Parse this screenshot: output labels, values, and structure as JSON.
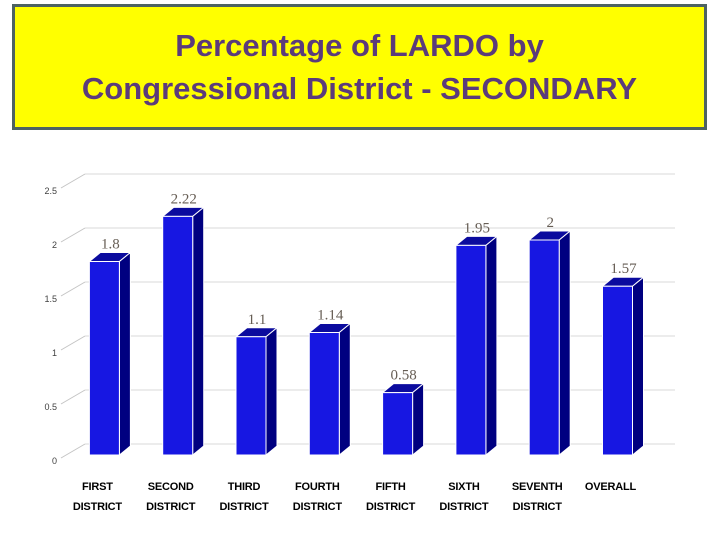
{
  "slide": {
    "title_line1": "Percentage of LARDO by",
    "title_line2": "Congressional District - SECONDARY"
  },
  "title_style": {
    "background": "#ffff00",
    "border": "#4d6262",
    "text": "#5b3b7b"
  },
  "chart_data": {
    "type": "bar",
    "variant": "3d-column",
    "title": "Percentage of LARDO by Congressional District - SECONDARY",
    "categories": [
      "FIRST DISTRICT",
      "SECOND DISTRICT",
      "THIRD DISTRICT",
      "FOURTH DISTRICT",
      "FIFTH DISTRICT",
      "SIXTH DISTRICT",
      "SEVENTH DISTRICT",
      "OVERALL"
    ],
    "category_lines": [
      [
        "FIRST",
        "DISTRICT"
      ],
      [
        "SECOND",
        "DISTRICT"
      ],
      [
        "THIRD",
        "DISTRICT"
      ],
      [
        "FOURTH",
        "DISTRICT"
      ],
      [
        "FIFTH",
        "DISTRICT"
      ],
      [
        "SIXTH",
        "DISTRICT"
      ],
      [
        "SEVENTH",
        "DISTRICT"
      ],
      [
        "OVERALL"
      ]
    ],
    "values": [
      1.8,
      2.22,
      1.1,
      1.14,
      0.58,
      1.95,
      2,
      1.57
    ],
    "data_labels": [
      "1.8",
      "2.22",
      "1.1",
      "1.14",
      "0.58",
      "1.95",
      "2",
      "1.57"
    ],
    "xlabel": "",
    "ylabel": "",
    "y_axis": {
      "min": 0,
      "max": 2.5,
      "step": 0.5,
      "tick_labels": [
        "0",
        "0.5",
        "1",
        "1.5",
        "2",
        "2.5"
      ]
    },
    "grid": true,
    "legend": "none",
    "colors": {
      "bar_front": "#1717e2",
      "bar_top": "#0b0b9e",
      "bar_side": "#000080",
      "bar_edge": "#ffffff",
      "gridline": "#d9d9d9",
      "axis_diagonal": "#c4c4c4",
      "tick_text": "#404040",
      "category_text": "#000000",
      "data_label_text": "#665d54"
    }
  }
}
